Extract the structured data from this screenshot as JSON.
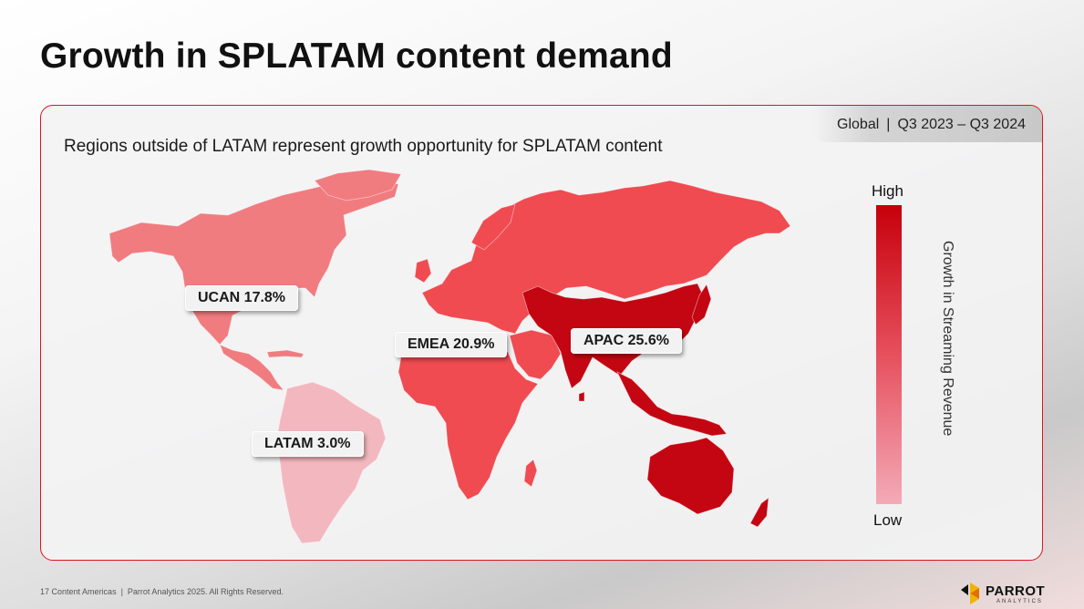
{
  "title": "Growth in SPLATAM content demand",
  "scope": {
    "region": "Global",
    "period": "Q3 2023 – Q3 2024"
  },
  "subtitle": "Regions outside of LATAM represent growth opportunity for SPLATAM content",
  "legend": {
    "high": "High",
    "low": "Low",
    "axis_title": "Growth in Streaming Revenue",
    "colors": [
      "#c6000b",
      "#e6505d",
      "#f4aab8"
    ]
  },
  "regions": [
    {
      "name": "UCAN",
      "growth_pct": 17.8,
      "label": "UCAN 17.8%",
      "color": "#f07c80"
    },
    {
      "name": "EMEA",
      "growth_pct": 20.9,
      "label": "EMEA 20.9%",
      "color": "#ef4b51"
    },
    {
      "name": "APAC",
      "growth_pct": 25.6,
      "label": "APAC 25.6%",
      "color": "#c30611"
    },
    {
      "name": "LATAM",
      "growth_pct": 3.0,
      "label": "LATAM 3.0%",
      "color": "#f3b8bf"
    }
  ],
  "footer": {
    "page": "17",
    "section": "Content Americas",
    "copyright": "Parrot Analytics 2025. All Rights Reserved."
  },
  "logo": {
    "name": "PARROT",
    "sub": "ANALYTICS"
  }
}
